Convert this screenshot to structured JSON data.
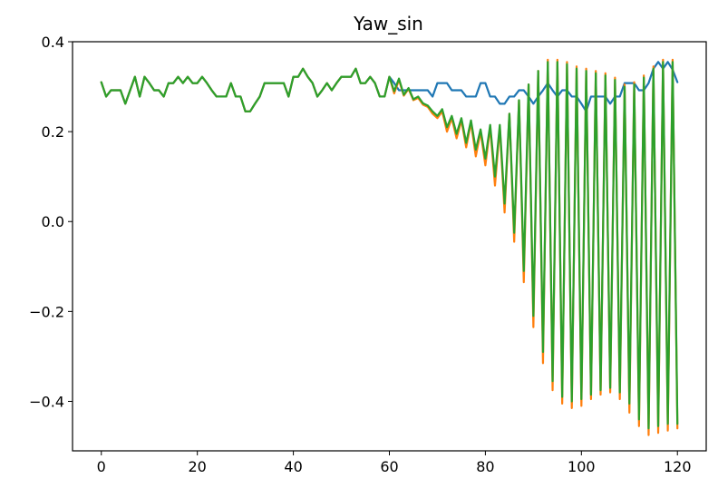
{
  "chart_data": {
    "type": "line",
    "title": "Yaw_sin",
    "xlabel": "",
    "ylabel": "",
    "xlim": [
      -6,
      126
    ],
    "ylim": [
      -0.51,
      0.4
    ],
    "xticks": [
      0,
      20,
      40,
      60,
      80,
      100,
      120
    ],
    "xtick_labels": [
      "0",
      "20",
      "40",
      "60",
      "80",
      "100",
      "120"
    ],
    "yticks": [
      -0.4,
      -0.2,
      0.0,
      0.2,
      0.4
    ],
    "ytick_labels": [
      "−0.4",
      "−0.2",
      "0.0",
      "0.2",
      "0.4"
    ],
    "grid": false,
    "legend": "none",
    "series": [
      {
        "color": "#1f77b4",
        "values": [
          0.31,
          0.278,
          0.292,
          0.292,
          0.292,
          0.262,
          0.292,
          0.322,
          0.278,
          0.322,
          0.308,
          0.292,
          0.292,
          0.278,
          0.308,
          0.308,
          0.322,
          0.308,
          0.322,
          0.308,
          0.308,
          0.322,
          0.308,
          0.292,
          0.278,
          0.278,
          0.278,
          0.308,
          0.278,
          0.278,
          0.245,
          0.245,
          0.262,
          0.278,
          0.308,
          0.308,
          0.308,
          0.308,
          0.308,
          0.278,
          0.322,
          0.322,
          0.34,
          0.322,
          0.308,
          0.278,
          0.292,
          0.308,
          0.292,
          0.308,
          0.322,
          0.322,
          0.322,
          0.34,
          0.308,
          0.308,
          0.322,
          0.308,
          0.278,
          0.278,
          0.322,
          0.308,
          0.292,
          0.292,
          0.292,
          0.292,
          0.292,
          0.292,
          0.292,
          0.278,
          0.308,
          0.308,
          0.308,
          0.292,
          0.292,
          0.292,
          0.278,
          0.278,
          0.278,
          0.308,
          0.308,
          0.278,
          0.278,
          0.262,
          0.262,
          0.278,
          0.278,
          0.292,
          0.292,
          0.278,
          0.262,
          0.278,
          0.292,
          0.308,
          0.292,
          0.278,
          0.292,
          0.292,
          0.278,
          0.278,
          0.262,
          0.245,
          0.278,
          0.278,
          0.278,
          0.278,
          0.262,
          0.278,
          0.278,
          0.308,
          0.308,
          0.308,
          0.292,
          0.292,
          0.308,
          0.34,
          0.355,
          0.34,
          0.355,
          0.338,
          0.31
        ]
      },
      {
        "color": "#ff7f0e",
        "values": [
          0.31,
          0.278,
          0.292,
          0.292,
          0.292,
          0.262,
          0.292,
          0.322,
          0.278,
          0.322,
          0.308,
          0.292,
          0.292,
          0.278,
          0.308,
          0.308,
          0.322,
          0.308,
          0.322,
          0.308,
          0.308,
          0.322,
          0.308,
          0.292,
          0.278,
          0.278,
          0.278,
          0.308,
          0.278,
          0.278,
          0.245,
          0.245,
          0.262,
          0.278,
          0.308,
          0.308,
          0.308,
          0.308,
          0.308,
          0.278,
          0.322,
          0.322,
          0.34,
          0.322,
          0.308,
          0.278,
          0.292,
          0.308,
          0.292,
          0.308,
          0.322,
          0.322,
          0.322,
          0.34,
          0.308,
          0.308,
          0.322,
          0.308,
          0.278,
          0.278,
          0.322,
          0.285,
          0.315,
          0.28,
          0.295,
          0.27,
          0.275,
          0.26,
          0.255,
          0.24,
          0.23,
          0.245,
          0.2,
          0.23,
          0.185,
          0.225,
          0.165,
          0.22,
          0.145,
          0.2,
          0.125,
          0.21,
          0.08,
          0.21,
          0.02,
          0.24,
          -0.045,
          0.27,
          -0.135,
          0.305,
          -0.235,
          0.335,
          -0.315,
          0.36,
          -0.375,
          0.36,
          -0.405,
          0.355,
          -0.415,
          0.345,
          -0.41,
          0.34,
          -0.395,
          0.335,
          -0.385,
          0.33,
          -0.38,
          0.32,
          -0.395,
          0.305,
          -0.425,
          0.31,
          -0.455,
          0.325,
          -0.475,
          0.345,
          -0.47,
          0.36,
          -0.465,
          0.36,
          -0.46
        ]
      },
      {
        "color": "#2ca02c",
        "values": [
          0.31,
          0.278,
          0.292,
          0.292,
          0.292,
          0.262,
          0.292,
          0.322,
          0.278,
          0.322,
          0.308,
          0.292,
          0.292,
          0.278,
          0.308,
          0.308,
          0.322,
          0.308,
          0.322,
          0.308,
          0.308,
          0.322,
          0.308,
          0.292,
          0.278,
          0.278,
          0.278,
          0.308,
          0.278,
          0.278,
          0.245,
          0.245,
          0.262,
          0.278,
          0.308,
          0.308,
          0.308,
          0.308,
          0.308,
          0.278,
          0.322,
          0.322,
          0.34,
          0.322,
          0.308,
          0.278,
          0.292,
          0.308,
          0.292,
          0.308,
          0.322,
          0.322,
          0.322,
          0.34,
          0.308,
          0.308,
          0.322,
          0.308,
          0.278,
          0.278,
          0.322,
          0.29,
          0.318,
          0.282,
          0.297,
          0.272,
          0.278,
          0.263,
          0.258,
          0.245,
          0.235,
          0.25,
          0.21,
          0.235,
          0.195,
          0.23,
          0.175,
          0.225,
          0.16,
          0.205,
          0.14,
          0.215,
          0.1,
          0.215,
          0.04,
          0.24,
          -0.025,
          0.27,
          -0.11,
          0.305,
          -0.21,
          0.335,
          -0.29,
          0.355,
          -0.355,
          0.355,
          -0.39,
          0.35,
          -0.4,
          0.34,
          -0.395,
          0.335,
          -0.385,
          0.33,
          -0.375,
          0.325,
          -0.37,
          0.315,
          -0.38,
          0.3,
          -0.405,
          0.305,
          -0.44,
          0.32,
          -0.46,
          0.34,
          -0.455,
          0.355,
          -0.45,
          0.355,
          -0.45
        ]
      }
    ]
  }
}
